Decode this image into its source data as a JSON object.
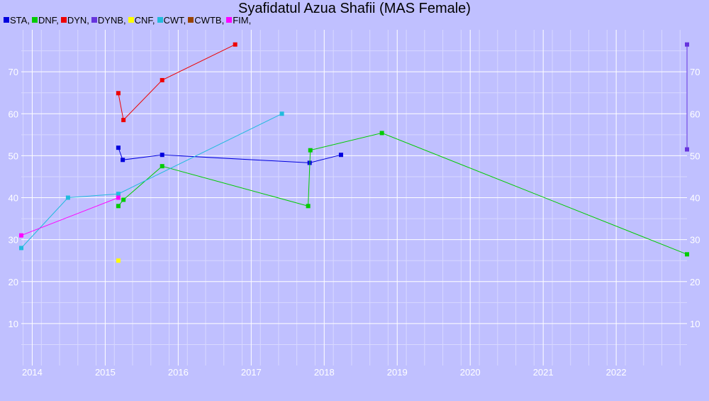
{
  "chart_data": {
    "type": "line",
    "title": "Syafidatul Azua Shafii (MAS Female)",
    "xlabel": "",
    "ylabel": "",
    "xlim": [
      2013.85,
      2022.97
    ],
    "ylim": [
      0,
      80
    ],
    "x_ticks": [
      2014,
      2015,
      2016,
      2017,
      2018,
      2019,
      2020,
      2021,
      2022
    ],
    "y_ticks": [
      10,
      20,
      30,
      40,
      50,
      60,
      70
    ],
    "grid": true,
    "legend_position": "top-left",
    "legend": [
      {
        "label": "STA,",
        "color": "#0000dd"
      },
      {
        "label": "DNF,",
        "color": "#00cc00"
      },
      {
        "label": "DYN,",
        "color": "#ee0000"
      },
      {
        "label": "DYNB,",
        "color": "#6633dd"
      },
      {
        "label": "CNF,",
        "color": "#ffff00"
      },
      {
        "label": "CWT,",
        "color": "#22bbdd"
      },
      {
        "label": "CWTB,",
        "color": "#994400"
      },
      {
        "label": "FIM,",
        "color": "#ff00ff"
      }
    ],
    "series": [
      {
        "name": "STA",
        "color": "#0000dd",
        "points": [
          [
            2015.18,
            51.9
          ],
          [
            2015.24,
            49.0
          ],
          [
            2015.78,
            50.2
          ],
          [
            2017.8,
            48.3
          ],
          [
            2018.23,
            50.2
          ]
        ]
      },
      {
        "name": "DNF",
        "color": "#00cc00",
        "points": [
          [
            2015.18,
            38.0
          ],
          [
            2015.25,
            39.5
          ],
          [
            2015.78,
            47.5
          ],
          [
            2017.78,
            38.0
          ],
          [
            2017.81,
            51.3
          ],
          [
            2018.79,
            55.4
          ],
          [
            2022.97,
            26.5
          ]
        ]
      },
      {
        "name": "DYN",
        "color": "#ee0000",
        "points": [
          [
            2015.18,
            64.9
          ],
          [
            2015.25,
            58.5
          ],
          [
            2015.78,
            68.0
          ],
          [
            2016.78,
            76.5
          ]
        ]
      },
      {
        "name": "DYNB",
        "color": "#6633dd",
        "points": [
          [
            2022.97,
            76.5
          ],
          [
            2022.97,
            51.5
          ]
        ]
      },
      {
        "name": "CNF",
        "color": "#ffff00",
        "points": [
          [
            2015.18,
            25.0
          ]
        ]
      },
      {
        "name": "CWT",
        "color": "#22bbdd",
        "points": [
          [
            2013.85,
            28.0
          ],
          [
            2014.49,
            40.0
          ],
          [
            2015.18,
            40.9
          ],
          [
            2017.42,
            60.0
          ]
        ]
      },
      {
        "name": "CWTB",
        "color": "#994400",
        "points": []
      },
      {
        "name": "FIM",
        "color": "#ff00ff",
        "points": [
          [
            2013.85,
            31.0
          ],
          [
            2015.18,
            40.0
          ]
        ]
      }
    ]
  }
}
